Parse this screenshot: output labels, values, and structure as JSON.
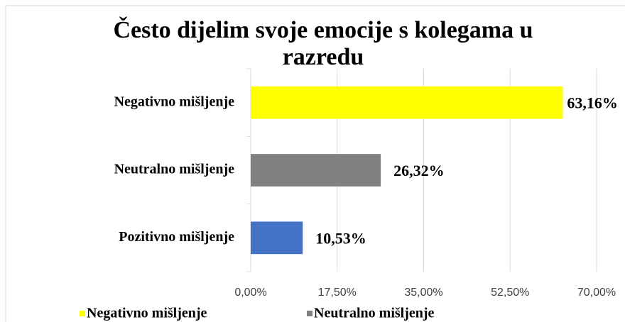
{
  "chart_data": {
    "type": "bar",
    "orientation": "horizontal",
    "title": "Često dijelim svoje emocije s kolegama u razredu",
    "categories": [
      "Negativno mišljenje",
      "Neutralno mišljenje",
      "Pozitivno mišljenje"
    ],
    "values": [
      63.16,
      26.32,
      10.53
    ],
    "value_labels": [
      "63,16%",
      "26,32%",
      "10,53%"
    ],
    "colors": [
      "#ffff00",
      "#808080",
      "#4472c4"
    ],
    "xlim": [
      0,
      70
    ],
    "xticks": [
      {
        "value": 0,
        "label": "0,00%"
      },
      {
        "value": 17.5,
        "label": "17,50%"
      },
      {
        "value": 35,
        "label": "35,00%"
      },
      {
        "value": 52.5,
        "label": "52,50%"
      },
      {
        "value": 70,
        "label": "70,00%"
      }
    ],
    "grid": true,
    "legend": [
      {
        "name": "Negativno mišljenje",
        "color": "#ffff00"
      },
      {
        "name": "Neutralno mišljenje",
        "color": "#808080"
      }
    ]
  }
}
